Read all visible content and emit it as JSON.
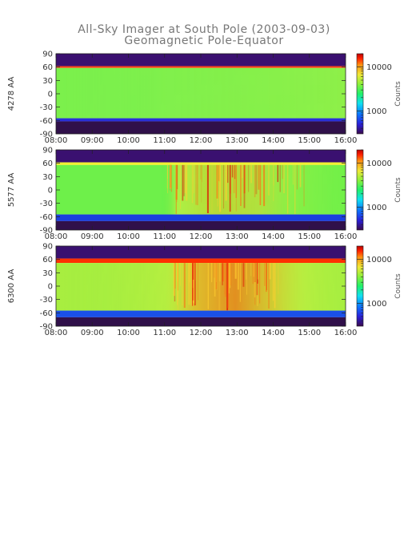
{
  "title": "All-Sky Imager at South Pole (2003-09-03)",
  "subtitle": "Geomagnetic Pole-Equator",
  "colorbar_label": "Counts",
  "colorbar_ticks": [
    "10000",
    "1000"
  ],
  "colorbar_tick_values": [
    10000,
    1000
  ],
  "colormap": [
    "#4b0a5a",
    "#2a1fd8",
    "#0a78ff",
    "#10e0f0",
    "#20f06a",
    "#8cf03a",
    "#f0e838",
    "#ff9010",
    "#ff2000",
    "#b80000"
  ],
  "chart_data": [
    {
      "type": "heatmap",
      "ylabel": "4278 AA",
      "xlabel": "",
      "x_ticks": [
        "08:00",
        "09:00",
        "10:00",
        "11:00",
        "12:00",
        "13:00",
        "14:00",
        "15:00",
        "16:00"
      ],
      "y_ticks": [
        "90",
        "60",
        "30",
        "0",
        "-30",
        "-60",
        "-90"
      ],
      "xlim": [
        "08:00",
        "16:00"
      ],
      "ylim": [
        -90,
        90
      ],
      "bands": [
        {
          "from": 62,
          "to": 90,
          "color": "#3a1070"
        },
        {
          "from": 58,
          "to": 62,
          "color": "#ff4010"
        },
        {
          "from": -55,
          "to": 58,
          "color": "#7cf04c"
        },
        {
          "from": -62,
          "to": -55,
          "color": "#2a30d8"
        },
        {
          "from": -90,
          "to": -62,
          "color": "#30104a"
        }
      ]
    },
    {
      "type": "heatmap",
      "ylabel": "5577 AA",
      "xlabel": "",
      "x_ticks": [
        "08:00",
        "09:00",
        "10:00",
        "11:00",
        "12:00",
        "13:00",
        "14:00",
        "15:00",
        "16:00"
      ],
      "y_ticks": [
        "90",
        "60",
        "30",
        "0",
        "-30",
        "-60",
        "-90"
      ],
      "xlim": [
        "08:00",
        "16:00"
      ],
      "ylim": [
        -90,
        90
      ],
      "bands": [
        {
          "from": 62,
          "to": 90,
          "color": "#3a1070"
        },
        {
          "from": 56,
          "to": 62,
          "color": "#f0f030"
        },
        {
          "from": -55,
          "to": 56,
          "color": "#6ef04a"
        },
        {
          "from": -70,
          "to": -55,
          "color": "#1a40e0"
        },
        {
          "from": -90,
          "to": -70,
          "color": "#30104a"
        }
      ]
    },
    {
      "type": "heatmap",
      "ylabel": "6300 AA",
      "xlabel": "",
      "x_ticks": [
        "08:00",
        "09:00",
        "10:00",
        "11:00",
        "12:00",
        "13:00",
        "14:00",
        "15:00",
        "16:00"
      ],
      "y_ticks": [
        "90",
        "60",
        "30",
        "0",
        "-30",
        "-60",
        "-90"
      ],
      "xlim": [
        "08:00",
        "16:00"
      ],
      "ylim": [
        -90,
        90
      ],
      "bands": [
        {
          "from": 62,
          "to": 90,
          "color": "#3a1070"
        },
        {
          "from": 52,
          "to": 62,
          "color": "#ff3000"
        },
        {
          "from": -55,
          "to": 52,
          "color": "#a8ee40"
        },
        {
          "from": -70,
          "to": -55,
          "color": "#1a50e8"
        },
        {
          "from": -90,
          "to": -70,
          "color": "#30104a"
        }
      ]
    }
  ]
}
